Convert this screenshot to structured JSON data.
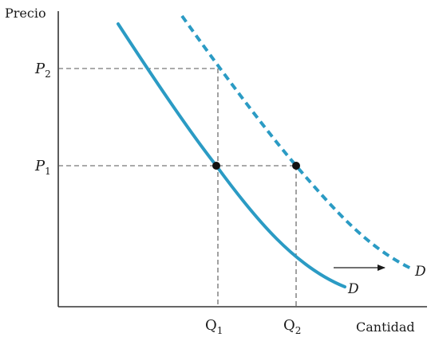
{
  "axes": {
    "y_title": "Precio",
    "x_title": "Cantidad"
  },
  "ticks": {
    "p2": {
      "main": "P",
      "sub": "2"
    },
    "p1": {
      "main": "P",
      "sub": "1"
    },
    "q1": {
      "main": "Q",
      "sub": "1"
    },
    "q2": {
      "main": "Q",
      "sub": "2"
    }
  },
  "curves": {
    "original_label": "D",
    "shifted_label": "D"
  },
  "colors": {
    "curve": "#2b9bc4",
    "axis": "#333333",
    "guide": "#555555",
    "point": "#111111"
  },
  "icons": {
    "shift": "arrow-right-icon"
  }
}
